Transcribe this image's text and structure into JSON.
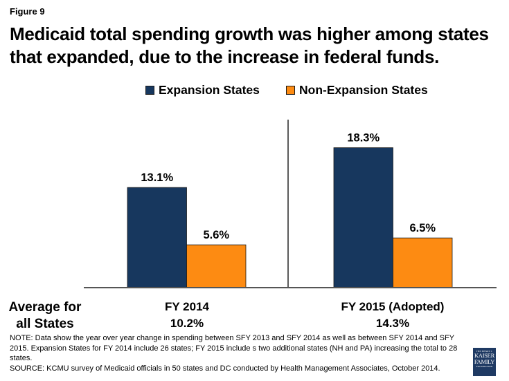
{
  "figure_label": "Figure 9",
  "title": "Medicaid total spending growth was higher among states that expanded, due to the increase in federal funds.",
  "chart_data": {
    "type": "bar",
    "title": "Medicaid total spending growth was higher among states that expanded, due to the increase in federal funds.",
    "categories": [
      "FY 2014",
      "FY 2015 (Adopted)"
    ],
    "series": [
      {
        "name": "Expansion States",
        "color": "#17375e",
        "values": [
          13.1,
          18.3
        ],
        "labels": [
          "13.1%",
          "18.3%"
        ]
      },
      {
        "name": "Non-Expansion States",
        "color": "#fd8b12",
        "values": [
          5.6,
          6.5
        ],
        "labels": [
          "5.6%",
          "6.5%"
        ]
      }
    ],
    "xlabel": "",
    "ylabel": "",
    "ylim": [
      0,
      21.7
    ],
    "grid": false,
    "legend_position": "top-center",
    "category_averages_label": "Average for all States",
    "category_averages": [
      "10.2%",
      "14.3%"
    ]
  },
  "legend": [
    {
      "label": "Expansion States",
      "color": "#17375e"
    },
    {
      "label": "Non-Expansion States",
      "color": "#fd8b12"
    }
  ],
  "avg_label_line1": "Average for",
  "avg_label_line2": "all States",
  "notes": {
    "note": "NOTE: Data show the year over year change in spending between SFY 2013 and SFY 2014 as well as between SFY 2014 and SFY 2015. Expansion States for FY 2014 include 26 states;  FY 2015 include s two additional states (NH and PA) increasing the total to 28 states.",
    "source": "SOURCE: KCMU survey of Medicaid officials in 50 states and DC conducted by Health Management Associates, October 2014."
  },
  "logo": {
    "line1": "THE HENRY J.",
    "line2": "KAISER",
    "line3": "FAMILY",
    "line4": "FOUNDATION"
  }
}
